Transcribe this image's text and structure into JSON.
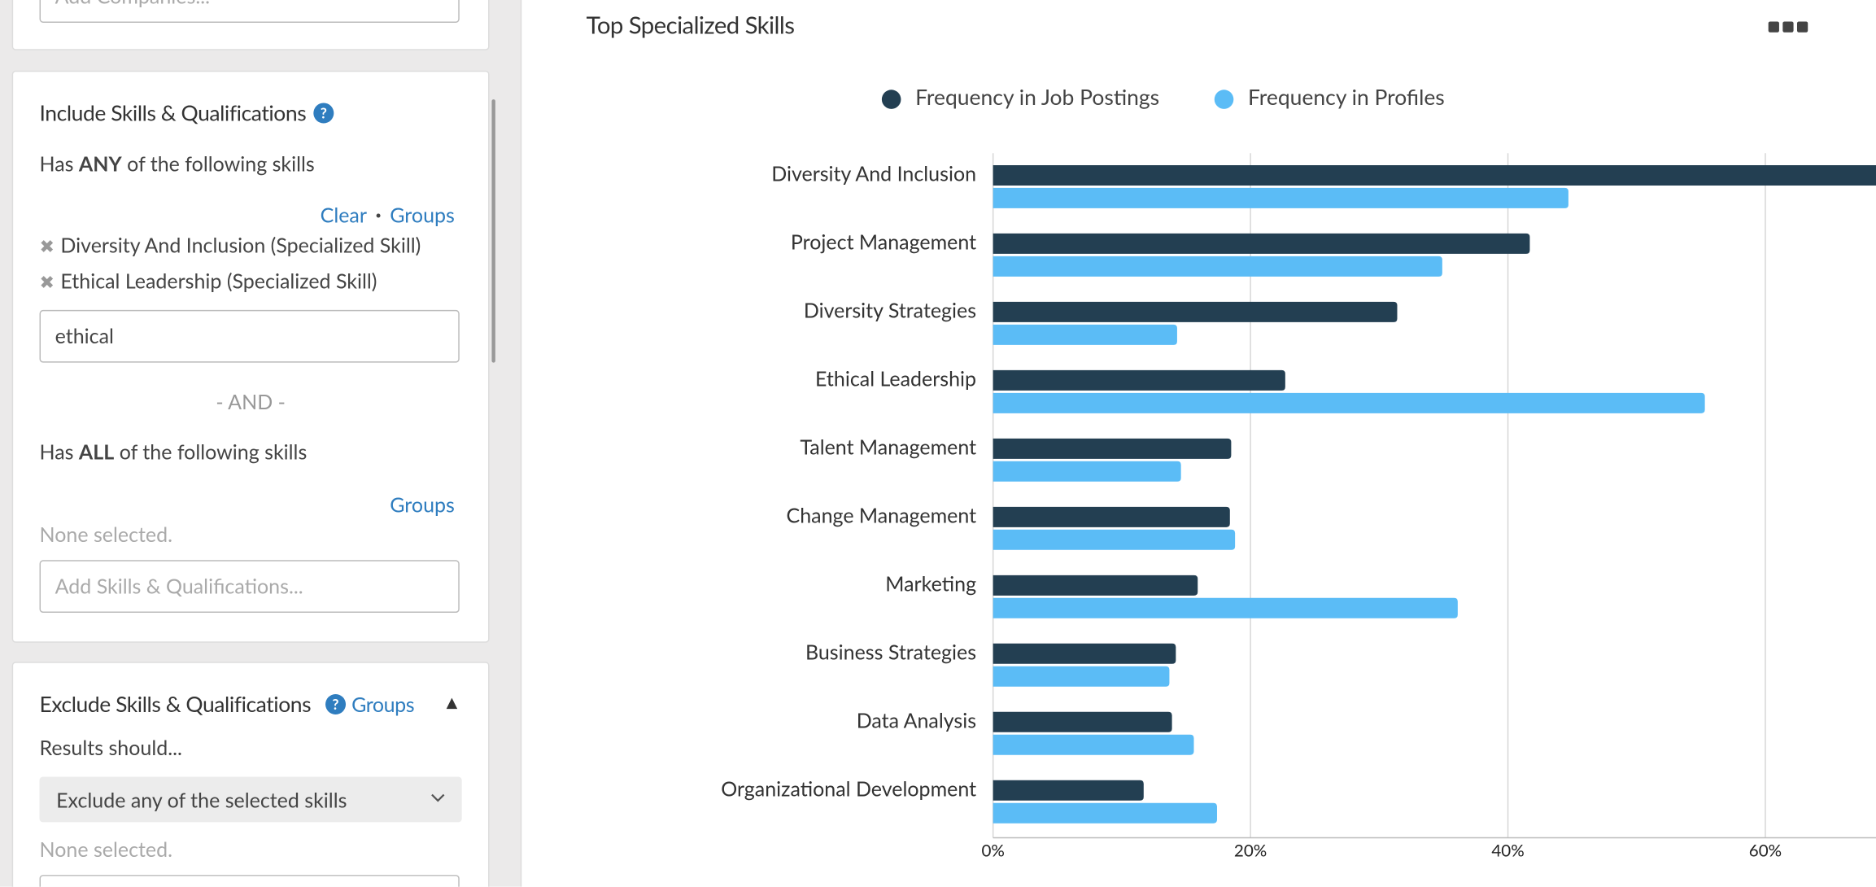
{
  "sidebar": {
    "companies_placeholder": "Add Companies...",
    "include": {
      "title": "Include Skills & Qualifications",
      "help": "?",
      "any": {
        "prefix": "Has",
        "emphasis": "ANY",
        "suffix": "of the following skills"
      },
      "clear": "Clear",
      "separator": "•",
      "groups": "Groups",
      "selected": [
        {
          "remove": "✖",
          "label": "Diversity And Inclusion (Specialized Skill)"
        },
        {
          "remove": "✖",
          "label": "Ethical Leadership (Specialized Skill)"
        }
      ],
      "input_value": "ethical",
      "and": "- AND -",
      "all": {
        "prefix": "Has",
        "emphasis": "ALL",
        "suffix": "of the following skills"
      },
      "all_groups": "Groups",
      "none": "None selected.",
      "placeholder": "Add Skills & Qualifications..."
    },
    "exclude": {
      "title": "Exclude Skills & Qualifications",
      "help": "?",
      "groups": "Groups",
      "toggle": "▲",
      "results": "Results should...",
      "select": "Exclude any of the selected skills",
      "none": "None selected."
    }
  },
  "chart_data": {
    "type": "hbar",
    "title": "Top Specialized Skills",
    "categories": [
      "Diversity And Inclusion",
      "Project Management",
      "Diversity Strategies",
      "Ethical Leadership",
      "Talent Management",
      "Change Management",
      "Marketing",
      "Business Strategies",
      "Data Analysis",
      "Organizational Development"
    ],
    "series": [
      {
        "name": "Frequency in Job Postings",
        "color": "#233f52",
        "values": [
          70,
          41.7,
          31.4,
          22.7,
          18.5,
          18.4,
          15.9,
          14.2,
          13.9,
          11.7
        ]
      },
      {
        "name": "Frequency in Profiles",
        "color": "#5bbcf6",
        "values": [
          44.7,
          34.9,
          14.3,
          55.3,
          14.6,
          18.8,
          36.1,
          13.7,
          15.6,
          17.4
        ]
      }
    ],
    "xlim": [
      0,
      68.6
    ],
    "xticks": [
      {
        "value": 0,
        "label": "0%"
      },
      {
        "value": 20,
        "label": "20%"
      },
      {
        "value": 40,
        "label": "40%"
      },
      {
        "value": 60,
        "label": "60%"
      }
    ],
    "grid": true,
    "legend": "top"
  }
}
